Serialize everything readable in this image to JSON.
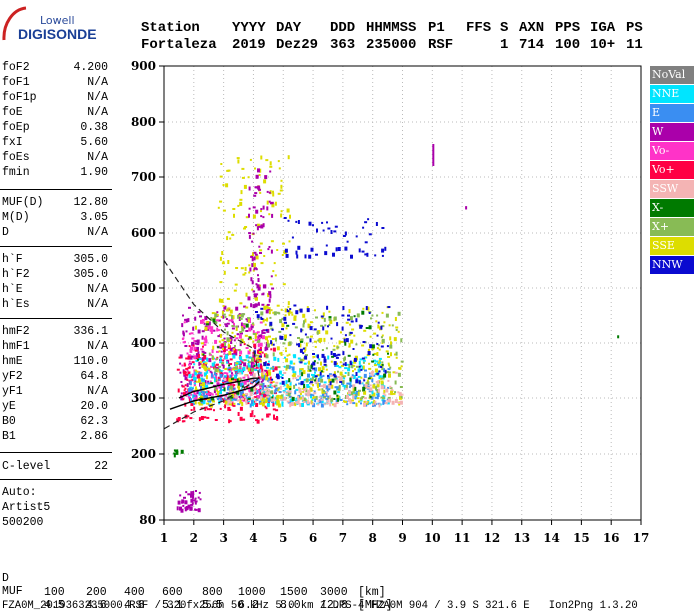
{
  "logo": {
    "top": "Lowell",
    "main": "DIGISONDE"
  },
  "header": {
    "labels": [
      "Station",
      "YYYY",
      "DAY",
      "DDD",
      "HHMMSS",
      "P1",
      "FFS",
      "S",
      "AXN",
      "PPS",
      "IGA",
      "PS"
    ],
    "values": [
      "Fortaleza",
      "2019",
      "Dez29",
      "363",
      "235000",
      "RSF",
      "",
      "1",
      "714",
      "100",
      "10+",
      "11"
    ]
  },
  "params": {
    "block1": [
      {
        "label": "foF2",
        "value": "4.200"
      },
      {
        "label": "foF1",
        "value": "N/A"
      },
      {
        "label": "foF1p",
        "value": "N/A"
      },
      {
        "label": "foE",
        "value": "N/A"
      },
      {
        "label": "foEp",
        "value": "0.38"
      },
      {
        "label": "fxI",
        "value": "5.60"
      },
      {
        "label": "foEs",
        "value": "N/A"
      },
      {
        "label": "fmin",
        "value": "1.90"
      }
    ],
    "block2": [
      {
        "label": "MUF(D)",
        "value": "12.80"
      },
      {
        "label": "M(D)",
        "value": "3.05"
      },
      {
        "label": "D",
        "value": "N/A"
      }
    ],
    "block3": [
      {
        "label": "h`F",
        "value": "305.0"
      },
      {
        "label": "h`F2",
        "value": "305.0"
      },
      {
        "label": "h`E",
        "value": "N/A"
      },
      {
        "label": "h`Es",
        "value": "N/A"
      }
    ],
    "block4": [
      {
        "label": "hmF2",
        "value": "336.1"
      },
      {
        "label": "hmF1",
        "value": "N/A"
      },
      {
        "label": "hmE",
        "value": "110.0"
      },
      {
        "label": "yF2",
        "value": "64.8"
      },
      {
        "label": "yF1",
        "value": "N/A"
      },
      {
        "label": "yE",
        "value": "20.0"
      },
      {
        "label": "B0",
        "value": "62.3"
      },
      {
        "label": "B1",
        "value": "2.86"
      }
    ],
    "block5": [
      {
        "label": "C-level",
        "value": "22"
      }
    ],
    "auto_lines": [
      "Auto:",
      "Artist5",
      "500200"
    ]
  },
  "legend": [
    {
      "label": "NoVal",
      "color": "#808080"
    },
    {
      "label": "NNE",
      "color": "#00e5ff"
    },
    {
      "label": "E",
      "color": "#3a8ef2"
    },
    {
      "label": "W",
      "color": "#aa00aa"
    },
    {
      "label": "Vo-",
      "color": "#ff33c8"
    },
    {
      "label": "Vo+",
      "color": "#ff0044"
    },
    {
      "label": "SSW",
      "color": "#f4b4b4"
    },
    {
      "label": "X-",
      "color": "#007a00"
    },
    {
      "label": "X+",
      "color": "#88bb55"
    },
    {
      "label": "SSE",
      "color": "#dddd00"
    },
    {
      "label": "NNW",
      "color": "#0a0ad0"
    }
  ],
  "footer": {
    "row1_label": "D",
    "row1_values": [
      "100",
      "200",
      "400",
      "600",
      "800",
      "1000",
      "1500",
      "3000"
    ],
    "row1_unit": "[km]",
    "row2_label": "MUF",
    "row2_values": [
      "4.5",
      "4.6",
      "4.8",
      "5.1",
      "5.5",
      "6.2",
      "8.0",
      "12.8"
    ],
    "row2_unit": "[MHz]",
    "info": "FZA0M_2019363235000.RSF / 320fx256h 50 kHz 5.0 km / DPS-4 FZA0M 904 / 3.9 S 321.6 E   Ion2Png 1.3.20"
  },
  "chart_data": {
    "type": "scatter",
    "description_free": true,
    "xlim": [
      1,
      17
    ],
    "ylim": [
      80,
      900
    ],
    "x_ticks": [
      "1",
      "2",
      "3",
      "4",
      "5",
      "6",
      "7",
      "8",
      "9",
      "10",
      "11",
      "12",
      "13",
      "14",
      "15",
      "16",
      "17"
    ],
    "y_ticks": [
      "80",
      "200",
      "300",
      "400",
      "500",
      "600",
      "700",
      "800",
      "900"
    ],
    "y_tick_values": [
      80,
      200,
      300,
      400,
      500,
      600,
      700,
      800,
      900
    ],
    "grid": "dotted",
    "legend_position": "right",
    "clusters": [
      {
        "series": "W",
        "x": [
          1.5,
          4.5
        ],
        "y": [
          300,
          470
        ],
        "n": 260
      },
      {
        "series": "Vo-",
        "x": [
          1.5,
          4.3
        ],
        "y": [
          300,
          450
        ],
        "n": 180
      },
      {
        "series": "Vo+",
        "x": [
          1.4,
          4.8
        ],
        "y": [
          260,
          400
        ],
        "n": 200
      },
      {
        "series": "NNE",
        "x": [
          1.8,
          8.5
        ],
        "y": [
          290,
          380
        ],
        "n": 240
      },
      {
        "series": "E",
        "x": [
          1.8,
          8.5
        ],
        "y": [
          290,
          360
        ],
        "n": 200
      },
      {
        "series": "SSE",
        "x": [
          2.0,
          9.0
        ],
        "y": [
          290,
          470
        ],
        "n": 360
      },
      {
        "series": "X+",
        "x": [
          2.5,
          9.0
        ],
        "y": [
          300,
          460
        ],
        "n": 200
      },
      {
        "series": "SSW",
        "x": [
          3.0,
          9.0
        ],
        "y": [
          290,
          350
        ],
        "n": 160
      },
      {
        "series": "NNW",
        "x": [
          4.0,
          8.5
        ],
        "y": [
          330,
          470
        ],
        "n": 120
      },
      {
        "series": "X-",
        "x": [
          2.0,
          8.5
        ],
        "y": [
          300,
          460
        ],
        "n": 60
      },
      {
        "series": "SSE",
        "x": [
          2.8,
          5.2
        ],
        "y": [
          460,
          740
        ],
        "n": 120
      },
      {
        "series": "W",
        "x": [
          3.8,
          4.6
        ],
        "y": [
          470,
          720
        ],
        "n": 80
      },
      {
        "series": "NNW",
        "x": [
          5.0,
          8.4
        ],
        "y": [
          560,
          630
        ],
        "n": 50
      },
      {
        "series": "W",
        "x": [
          1.4,
          2.2
        ],
        "y": [
          100,
          135
        ],
        "n": 40
      },
      {
        "series": "X-",
        "x": [
          1.3,
          1.6
        ],
        "y": [
          200,
          210
        ],
        "n": 8
      }
    ],
    "isolated_points": [
      {
        "series": "W",
        "x": [
          10.0,
          10.0
        ],
        "y": [
          720,
          760
        ]
      },
      {
        "series": "W",
        "x": [
          11.1,
          11.1
        ],
        "y": [
          642,
          648
        ]
      },
      {
        "series": "X-",
        "x": [
          16.2,
          16.2
        ],
        "y": [
          410,
          414
        ]
      }
    ],
    "profile_curve": [
      [
        1.5,
        300
      ],
      [
        2.0,
        312
      ],
      [
        2.5,
        318
      ],
      [
        3.0,
        325
      ],
      [
        3.5,
        330
      ],
      [
        4.0,
        336
      ],
      [
        4.2,
        336
      ]
    ],
    "trace_low": [
      [
        1.2,
        280
      ],
      [
        2.0,
        295
      ],
      [
        3.0,
        305
      ],
      [
        4.0,
        320
      ],
      [
        4.2,
        330
      ]
    ],
    "dashed_curve": [
      [
        1.0,
        550
      ],
      [
        2.0,
        470
      ],
      [
        3.0,
        420
      ],
      [
        4.0,
        390
      ],
      [
        4.2,
        336
      ],
      [
        3.0,
        295
      ],
      [
        2.0,
        275
      ],
      [
        1.0,
        245
      ]
    ]
  }
}
